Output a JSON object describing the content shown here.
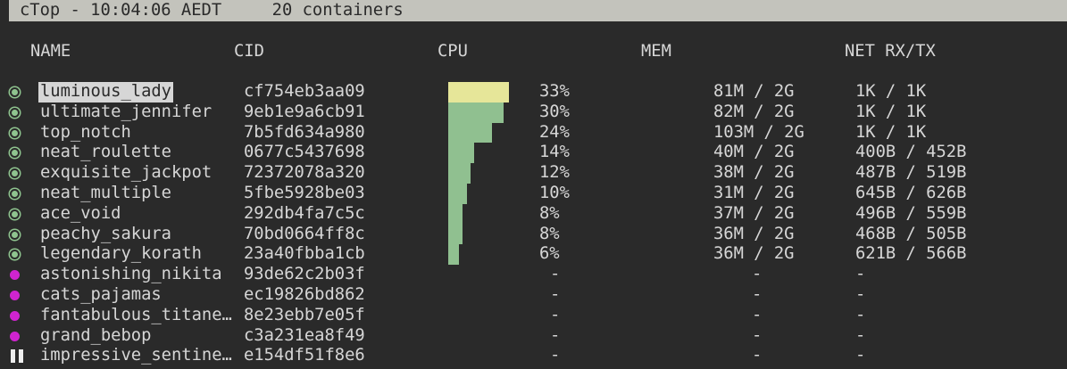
{
  "title": "cTop - 10:04:06 AEDT     20 containers",
  "headers": {
    "name": "NAME",
    "cid": "CID",
    "cpu": "CPU",
    "mem": "MEM",
    "net": "NET RX/TX"
  },
  "colors": {
    "running": "#8fc48f",
    "stopped": "#d024d0",
    "selected_bar": "#e6e699",
    "bar": "#90c090"
  },
  "rows": [
    {
      "state": "running",
      "name": "luminous_lady",
      "cid": "cf754eb3aa09",
      "cpu_pct": 33,
      "cpu": "33%",
      "mem": "81M / 2G",
      "net": "1K / 1K",
      "selected": true
    },
    {
      "state": "running",
      "name": "ultimate_jennifer",
      "cid": "9eb1e9a6cb91",
      "cpu_pct": 30,
      "cpu": "30%",
      "mem": "82M / 2G",
      "net": "1K / 1K"
    },
    {
      "state": "running",
      "name": "top_notch",
      "cid": "7b5fd634a980",
      "cpu_pct": 24,
      "cpu": "24%",
      "mem": "103M / 2G",
      "net": "1K / 1K"
    },
    {
      "state": "running",
      "name": "neat_roulette",
      "cid": "0677c5437698",
      "cpu_pct": 14,
      "cpu": "14%",
      "mem": "40M / 2G",
      "net": "400B / 452B"
    },
    {
      "state": "running",
      "name": "exquisite_jackpot",
      "cid": "72372078a320",
      "cpu_pct": 12,
      "cpu": "12%",
      "mem": "38M / 2G",
      "net": "487B / 519B"
    },
    {
      "state": "running",
      "name": "neat_multiple",
      "cid": "5fbe5928be03",
      "cpu_pct": 10,
      "cpu": "10%",
      "mem": "31M / 2G",
      "net": "645B / 626B"
    },
    {
      "state": "running",
      "name": "ace_void",
      "cid": "292db4fa7c5c",
      "cpu_pct": 8,
      "cpu": "8%",
      "mem": "37M / 2G",
      "net": "496B / 559B"
    },
    {
      "state": "running",
      "name": "peachy_sakura",
      "cid": "70bd0664ff8c",
      "cpu_pct": 8,
      "cpu": "8%",
      "mem": "36M / 2G",
      "net": "468B / 505B"
    },
    {
      "state": "running",
      "name": "legendary_korath",
      "cid": "23a40fbba1cb",
      "cpu_pct": 6,
      "cpu": "6%",
      "mem": "36M / 2G",
      "net": "621B / 566B"
    },
    {
      "state": "stopped",
      "name": "astonishing_nikita",
      "cid": "93de62c2b03f",
      "cpu": "-",
      "mem": "-",
      "net": "-"
    },
    {
      "state": "stopped",
      "name": "cats_pajamas",
      "cid": "ec19826bd862",
      "cpu": "-",
      "mem": "-",
      "net": "-"
    },
    {
      "state": "stopped",
      "name": "fantabulous_titane…",
      "cid": "8e23ebb7e05f",
      "cpu": "-",
      "mem": "-",
      "net": "-"
    },
    {
      "state": "stopped",
      "name": "grand_bebop",
      "cid": "c3a231ea8f49",
      "cpu": "-",
      "mem": "-",
      "net": "-"
    },
    {
      "state": "paused",
      "name": "impressive_sentine…",
      "cid": "e154df51f8e6",
      "cpu": "-",
      "mem": "-",
      "net": "-"
    }
  ]
}
